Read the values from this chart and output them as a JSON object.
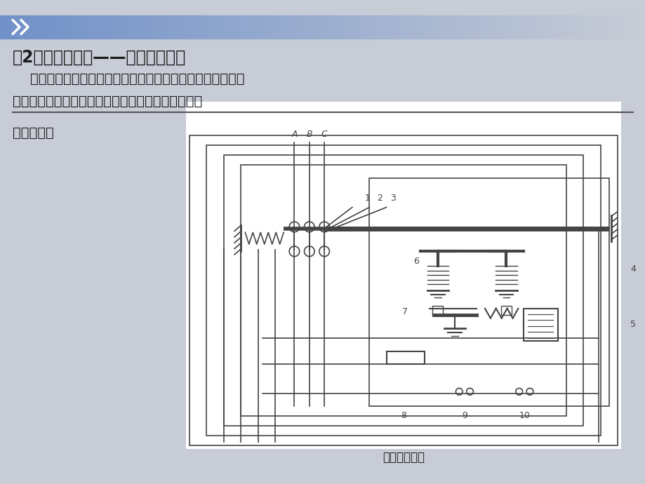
{
  "bg_color": "#c8ccd6",
  "panel_bg": "#ffffff",
  "header_color_left": "#7090c8",
  "header_color_right": "#c8ccd6",
  "title_text": "（2）低压断路器——自动空气开关",
  "line1": "    是电路发生过载、短路或欠电压时能自动分断电路的电器。",
  "line2": "它是低压交、直流配电系统中的重要保护电器之一。",
  "label_work": "工作原理：",
  "diagram_caption": "断路器原理图",
  "text_color": "#1a1a1a",
  "diagram_color": "#444444",
  "title_fontsize": 17,
  "body_fontsize": 14,
  "work_fontsize": 14,
  "caption_fontsize": 12
}
